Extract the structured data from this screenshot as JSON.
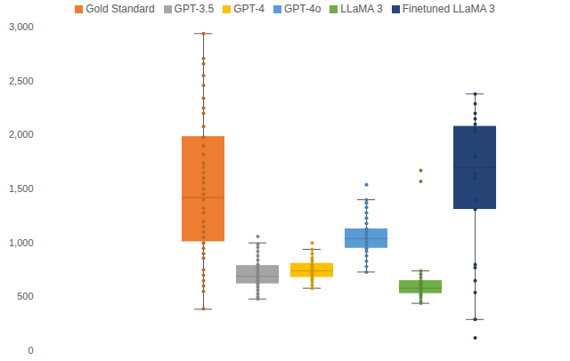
{
  "chart_data": {
    "type": "box",
    "ylim": [
      0,
      3000
    ],
    "yticks": [
      0,
      500,
      1000,
      1500,
      2000,
      2500,
      3000
    ],
    "grid": false,
    "tick_labels": "y",
    "legend": "top",
    "series": [
      {
        "name": "Gold Standard",
        "color": "#ed7d31",
        "min": 385,
        "q1": 1010,
        "median": 1420,
        "q3": 1985,
        "max": 2940,
        "points": [
          2940,
          2710,
          2660,
          2550,
          2460,
          2340,
          2250,
          2200,
          2080,
          1980,
          1900,
          1820,
          1740,
          1700,
          1650,
          1600,
          1560,
          1500,
          1450,
          1400,
          1320,
          1280,
          1200,
          1150,
          1100,
          1050,
          1000,
          950,
          900,
          860,
          750,
          700,
          650,
          600,
          550,
          390
        ]
      },
      {
        "name": "GPT-3.5",
        "color": "#a5a5a5",
        "min": 480,
        "q1": 620,
        "median": 690,
        "q3": 790,
        "max": 1000,
        "points": [
          1060,
          990,
          960,
          920,
          880,
          840,
          800,
          780,
          760,
          740,
          720,
          700,
          690,
          670,
          650,
          630,
          610,
          590,
          560,
          530,
          500,
          480
        ]
      },
      {
        "name": "GPT-4",
        "color": "#ffc000",
        "min": 580,
        "q1": 680,
        "median": 740,
        "q3": 810,
        "max": 940,
        "points": [
          1000,
          940,
          900,
          860,
          830,
          800,
          780,
          760,
          740,
          720,
          700,
          680,
          660,
          640,
          610,
          580
        ]
      },
      {
        "name": "GPT-4o",
        "color": "#5b9bd5",
        "min": 730,
        "q1": 950,
        "median": 1040,
        "q3": 1130,
        "max": 1400,
        "points": [
          1540,
          1400,
          1370,
          1330,
          1280,
          1230,
          1180,
          1130,
          1100,
          1070,
          1040,
          1010,
          980,
          950,
          920,
          880,
          830,
          780,
          730
        ]
      },
      {
        "name": "LLaMA 3",
        "color": "#70ad47",
        "min": 440,
        "q1": 530,
        "median": 580,
        "q3": 650,
        "max": 740,
        "points": [
          1670,
          1570,
          740,
          710,
          680,
          650,
          630,
          610,
          590,
          580,
          570,
          550,
          530,
          510,
          490,
          460,
          440
        ]
      },
      {
        "name": "Finetuned LLaMA 3",
        "color": "#264478",
        "min": 290,
        "q1": 1310,
        "median": 1700,
        "q3": 2080,
        "max": 2380,
        "points": [
          2380,
          2290,
          2200,
          2150,
          2100,
          2060,
          2030,
          1800,
          1640,
          1600,
          1400,
          1310,
          800,
          770,
          650,
          540,
          290,
          120
        ]
      }
    ]
  }
}
